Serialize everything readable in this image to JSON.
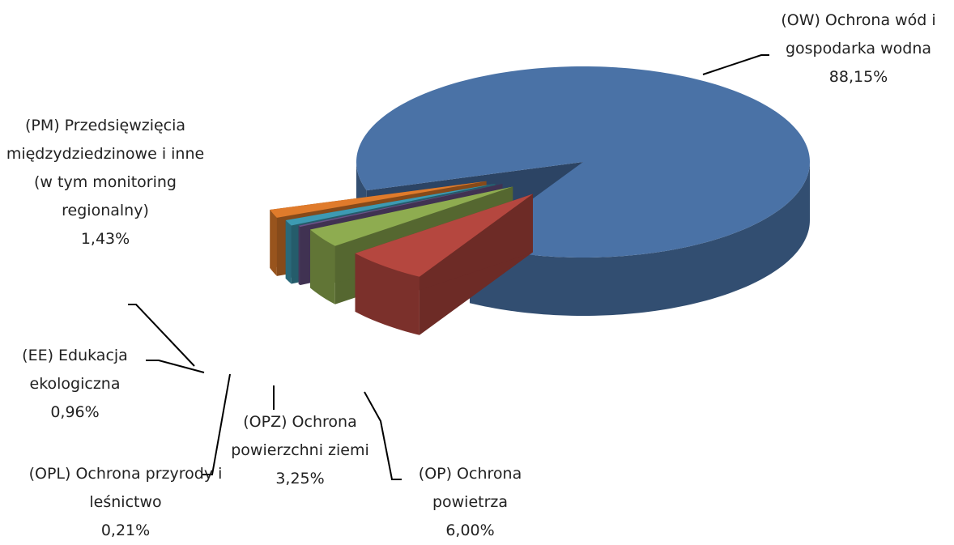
{
  "chart_data": {
    "type": "pie3d",
    "categories": [
      "(OP)   Ochrona powietrza",
      "(OPZ) Ochrona powierzchni ziemi",
      "(OPL) Ochrona przyrody i leśnictwo",
      "(EE)    Edukacja ekologiczna",
      "(PM) Przedsięwzięcia międzydziedzinowe i inne (w tym monitoring regionalny)",
      "(OW)  Ochrona wód i gospodarka wodna"
    ],
    "values": [
      6.0,
      3.25,
      0.21,
      0.96,
      1.43,
      88.15
    ],
    "value_labels": [
      "6,00%",
      "3,25%",
      "0,21%",
      "0,96%",
      "1,43%",
      "88,15%"
    ],
    "colors": [
      "#b5473f",
      "#8eac50",
      "#6a5389",
      "#3d9ab3",
      "#e07b2b",
      "#4a72a6"
    ]
  }
}
